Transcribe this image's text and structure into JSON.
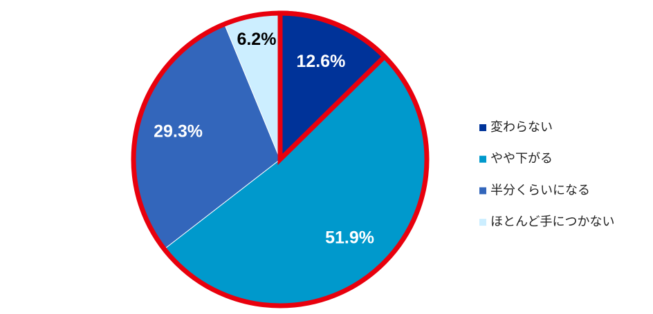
{
  "chart_data": {
    "type": "pie",
    "categories": [
      "変わらない",
      "やや下がる",
      "半分くらいになる",
      "ほとんど手につかない"
    ],
    "values": [
      12.6,
      51.9,
      29.3,
      6.2
    ],
    "value_labels": [
      "12.6%",
      "51.9%",
      "29.3%",
      "6.2%"
    ],
    "colors": [
      "#003399",
      "#0099cc",
      "#3366bb",
      "#cceeff"
    ],
    "label_colors": [
      "#ffffff",
      "#ffffff",
      "#ffffff",
      "#000000"
    ],
    "highlight": [
      0
    ],
    "highlight_color": "#e8000d",
    "legend": "right"
  }
}
